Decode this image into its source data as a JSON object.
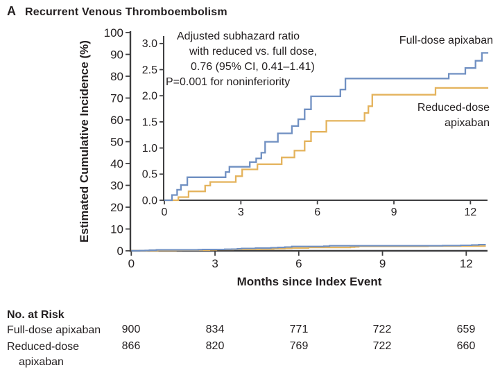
{
  "figure": {
    "panel_label": "A",
    "title": "Recurrent Venous Thromboembolism"
  },
  "colors": {
    "full_dose": "#7090c2",
    "reduced_dose": "#e4b35c",
    "axis": "#3e3e40",
    "text": "#231f20"
  },
  "chart_data": {
    "type": "line",
    "subtype": "step-cumulative-incidence",
    "title": "Recurrent Venous Thromboembolism",
    "xlabel": "Months since Index Event",
    "ylabel": "Estimated Cumulative Incidence (%)",
    "main_axis": {
      "xlim": [
        0,
        12.7
      ],
      "ylim": [
        0,
        100
      ],
      "x_ticks": [
        0,
        3,
        6,
        9,
        12
      ],
      "y_ticks": [
        0,
        10,
        20,
        30,
        40,
        50,
        60,
        70,
        80,
        90,
        100
      ],
      "grid": false
    },
    "inset_axis": {
      "xlim": [
        0,
        12.7
      ],
      "ylim": [
        0,
        3.0
      ],
      "x_ticks": [
        0,
        3,
        6,
        9,
        12
      ],
      "y_ticks": [
        0.0,
        0.5,
        1.0,
        1.5,
        2.0,
        2.5,
        3.0
      ],
      "grid": false
    },
    "annotation": {
      "lines": [
        "Adjusted subhazard ratio",
        "with reduced vs. full dose,",
        "0.76 (95% CI, 0.41–1.41)",
        "P=0.001 for noninferiority"
      ]
    },
    "series": [
      {
        "name": "Reduced-dose apixaban",
        "color": "#e4b35c",
        "start": [
          0,
          0
        ],
        "end_month": 12.7,
        "steps": [
          [
            0.55,
            0.06
          ],
          [
            0.95,
            0.17
          ],
          [
            1.6,
            0.28
          ],
          [
            1.8,
            0.35
          ],
          [
            2.8,
            0.46
          ],
          [
            3.05,
            0.59
          ],
          [
            3.65,
            0.69
          ],
          [
            4.6,
            0.82
          ],
          [
            5.1,
            0.95
          ],
          [
            5.5,
            1.13
          ],
          [
            5.75,
            1.31
          ],
          [
            6.35,
            1.52
          ],
          [
            7.85,
            1.67
          ],
          [
            8.0,
            1.8
          ],
          [
            8.15,
            2.02
          ],
          [
            10.63,
            2.15
          ]
        ]
      },
      {
        "name": "Full-dose apixaban",
        "color": "#7090c2",
        "start": [
          0,
          0
        ],
        "end_month": 12.7,
        "steps": [
          [
            0.3,
            0.1
          ],
          [
            0.5,
            0.2
          ],
          [
            0.65,
            0.29
          ],
          [
            0.9,
            0.44
          ],
          [
            2.4,
            0.54
          ],
          [
            2.55,
            0.64
          ],
          [
            3.35,
            0.73
          ],
          [
            3.6,
            0.8
          ],
          [
            3.8,
            0.91
          ],
          [
            3.95,
            1.12
          ],
          [
            4.45,
            1.28
          ],
          [
            5.0,
            1.42
          ],
          [
            5.25,
            1.55
          ],
          [
            5.5,
            1.74
          ],
          [
            5.75,
            1.99
          ],
          [
            6.9,
            2.12
          ],
          [
            7.1,
            2.33
          ],
          [
            11.15,
            2.42
          ],
          [
            11.8,
            2.53
          ],
          [
            12.2,
            2.67
          ],
          [
            12.45,
            2.82
          ]
        ]
      }
    ],
    "curve_labels": {
      "full": "Full-dose apixaban",
      "reduced_line1": "Reduced-dose",
      "reduced_line2": "apixaban"
    },
    "legend_position": "on-curve-right"
  },
  "risk_table": {
    "heading": "No. at Risk",
    "columns_months": [
      0,
      3,
      6,
      9,
      12
    ],
    "rows": [
      {
        "label": "Full-dose apixaban",
        "label_line2": "",
        "counts": [
          "900",
          "834",
          "771",
          "722",
          "659"
        ]
      },
      {
        "label": "Reduced-dose",
        "label_line2": "apixaban",
        "counts": [
          "866",
          "820",
          "769",
          "722",
          "660"
        ]
      }
    ]
  }
}
